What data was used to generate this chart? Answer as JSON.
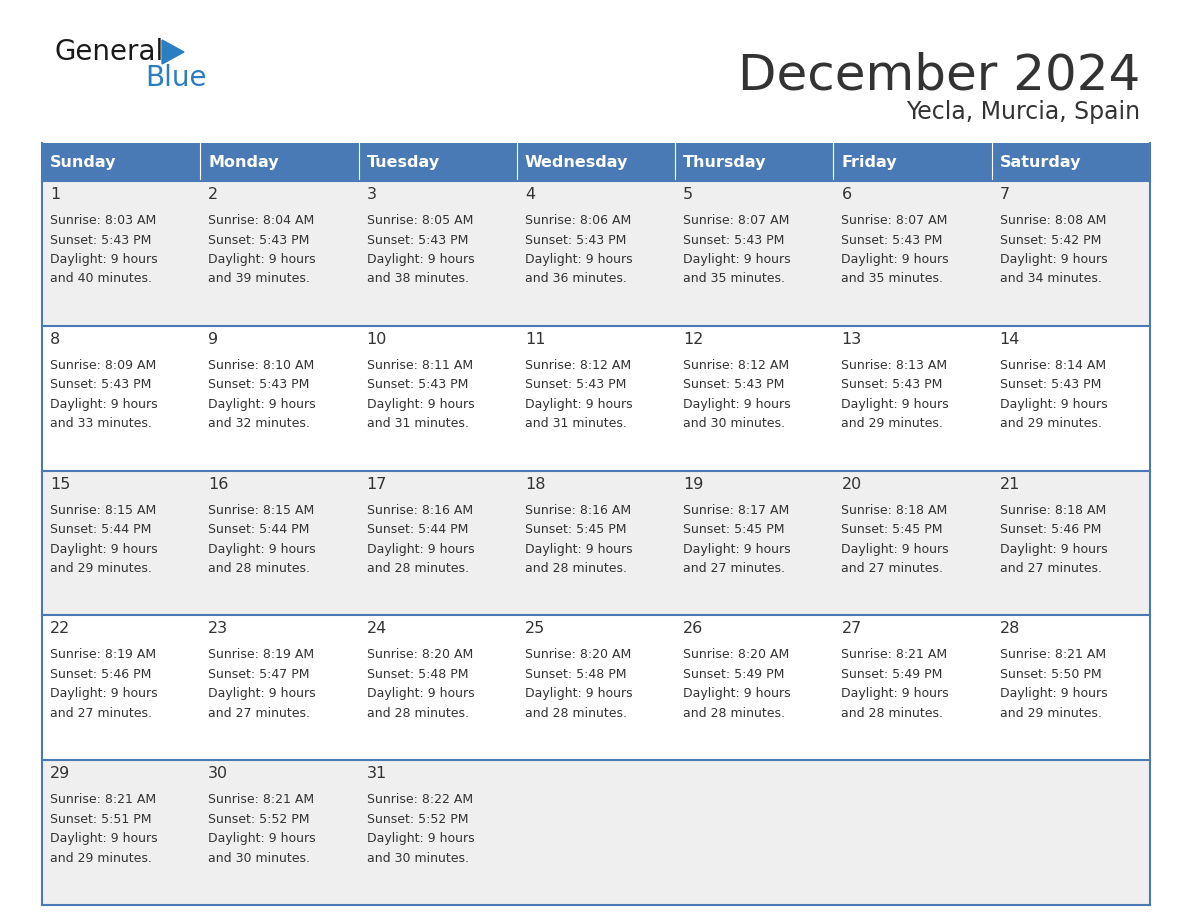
{
  "title": "December 2024",
  "subtitle": "Yecla, Murcia, Spain",
  "header_color": "#4a7ab5",
  "header_text_color": "#FFFFFF",
  "day_names": [
    "Sunday",
    "Monday",
    "Tuesday",
    "Wednesday",
    "Thursday",
    "Friday",
    "Saturday"
  ],
  "bg_color": "#FFFFFF",
  "cell_bg_odd": "#EFEFEF",
  "cell_bg_even": "#FFFFFF",
  "grid_color": "#4a7ab5",
  "text_color": "#333333",
  "weeks": [
    [
      {
        "day": "1",
        "sunrise": "8:03 AM",
        "sunset": "5:43 PM",
        "daylight": "9 hours and 40 minutes."
      },
      {
        "day": "2",
        "sunrise": "8:04 AM",
        "sunset": "5:43 PM",
        "daylight": "9 hours and 39 minutes."
      },
      {
        "day": "3",
        "sunrise": "8:05 AM",
        "sunset": "5:43 PM",
        "daylight": "9 hours and 38 minutes."
      },
      {
        "day": "4",
        "sunrise": "8:06 AM",
        "sunset": "5:43 PM",
        "daylight": "9 hours and 36 minutes."
      },
      {
        "day": "5",
        "sunrise": "8:07 AM",
        "sunset": "5:43 PM",
        "daylight": "9 hours and 35 minutes."
      },
      {
        "day": "6",
        "sunrise": "8:07 AM",
        "sunset": "5:43 PM",
        "daylight": "9 hours and 35 minutes."
      },
      {
        "day": "7",
        "sunrise": "8:08 AM",
        "sunset": "5:42 PM",
        "daylight": "9 hours and 34 minutes."
      }
    ],
    [
      {
        "day": "8",
        "sunrise": "8:09 AM",
        "sunset": "5:43 PM",
        "daylight": "9 hours and 33 minutes."
      },
      {
        "day": "9",
        "sunrise": "8:10 AM",
        "sunset": "5:43 PM",
        "daylight": "9 hours and 32 minutes."
      },
      {
        "day": "10",
        "sunrise": "8:11 AM",
        "sunset": "5:43 PM",
        "daylight": "9 hours and 31 minutes."
      },
      {
        "day": "11",
        "sunrise": "8:12 AM",
        "sunset": "5:43 PM",
        "daylight": "9 hours and 31 minutes."
      },
      {
        "day": "12",
        "sunrise": "8:12 AM",
        "sunset": "5:43 PM",
        "daylight": "9 hours and 30 minutes."
      },
      {
        "day": "13",
        "sunrise": "8:13 AM",
        "sunset": "5:43 PM",
        "daylight": "9 hours and 29 minutes."
      },
      {
        "day": "14",
        "sunrise": "8:14 AM",
        "sunset": "5:43 PM",
        "daylight": "9 hours and 29 minutes."
      }
    ],
    [
      {
        "day": "15",
        "sunrise": "8:15 AM",
        "sunset": "5:44 PM",
        "daylight": "9 hours and 29 minutes."
      },
      {
        "day": "16",
        "sunrise": "8:15 AM",
        "sunset": "5:44 PM",
        "daylight": "9 hours and 28 minutes."
      },
      {
        "day": "17",
        "sunrise": "8:16 AM",
        "sunset": "5:44 PM",
        "daylight": "9 hours and 28 minutes."
      },
      {
        "day": "18",
        "sunrise": "8:16 AM",
        "sunset": "5:45 PM",
        "daylight": "9 hours and 28 minutes."
      },
      {
        "day": "19",
        "sunrise": "8:17 AM",
        "sunset": "5:45 PM",
        "daylight": "9 hours and 27 minutes."
      },
      {
        "day": "20",
        "sunrise": "8:18 AM",
        "sunset": "5:45 PM",
        "daylight": "9 hours and 27 minutes."
      },
      {
        "day": "21",
        "sunrise": "8:18 AM",
        "sunset": "5:46 PM",
        "daylight": "9 hours and 27 minutes."
      }
    ],
    [
      {
        "day": "22",
        "sunrise": "8:19 AM",
        "sunset": "5:46 PM",
        "daylight": "9 hours and 27 minutes."
      },
      {
        "day": "23",
        "sunrise": "8:19 AM",
        "sunset": "5:47 PM",
        "daylight": "9 hours and 27 minutes."
      },
      {
        "day": "24",
        "sunrise": "8:20 AM",
        "sunset": "5:48 PM",
        "daylight": "9 hours and 28 minutes."
      },
      {
        "day": "25",
        "sunrise": "8:20 AM",
        "sunset": "5:48 PM",
        "daylight": "9 hours and 28 minutes."
      },
      {
        "day": "26",
        "sunrise": "8:20 AM",
        "sunset": "5:49 PM",
        "daylight": "9 hours and 28 minutes."
      },
      {
        "day": "27",
        "sunrise": "8:21 AM",
        "sunset": "5:49 PM",
        "daylight": "9 hours and 28 minutes."
      },
      {
        "day": "28",
        "sunrise": "8:21 AM",
        "sunset": "5:50 PM",
        "daylight": "9 hours and 29 minutes."
      }
    ],
    [
      {
        "day": "29",
        "sunrise": "8:21 AM",
        "sunset": "5:51 PM",
        "daylight": "9 hours and 29 minutes."
      },
      {
        "day": "30",
        "sunrise": "8:21 AM",
        "sunset": "5:52 PM",
        "daylight": "9 hours and 30 minutes."
      },
      {
        "day": "31",
        "sunrise": "8:22 AM",
        "sunset": "5:52 PM",
        "daylight": "9 hours and 30 minutes."
      },
      null,
      null,
      null,
      null
    ]
  ],
  "logo_color_general": "#1a1a1a",
  "logo_color_blue": "#2B7EC1"
}
